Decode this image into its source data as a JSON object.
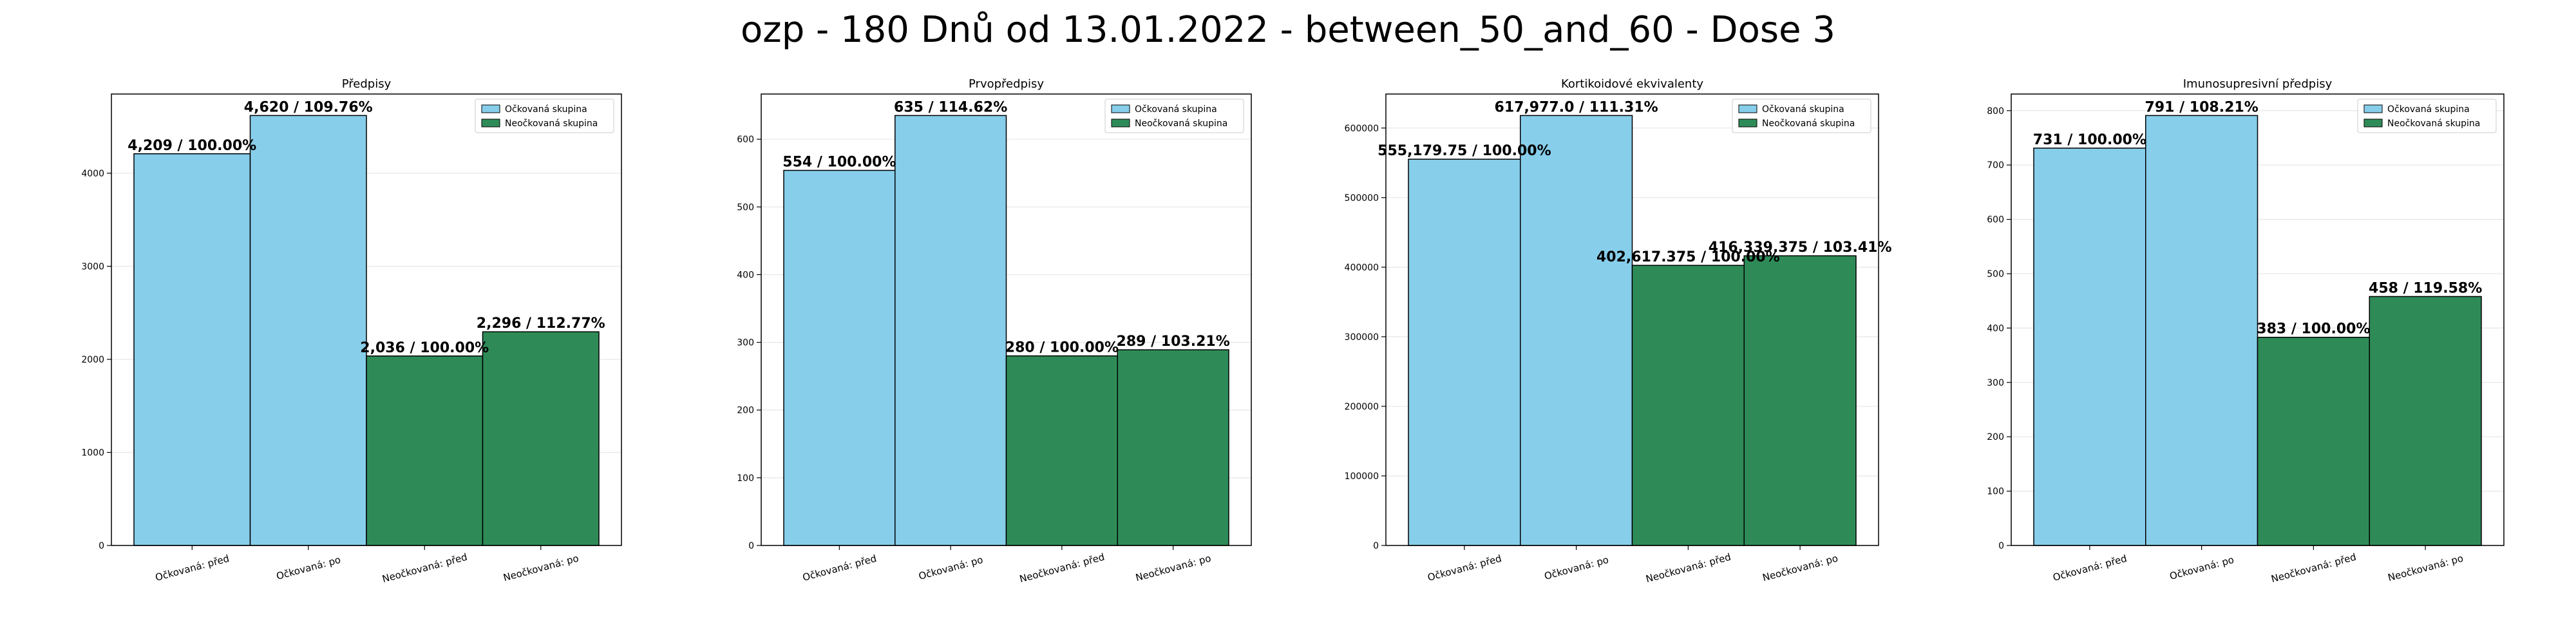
{
  "figure": {
    "title": "ozp - 180 Dnů od 13.01.2022 - between_50_and_60 - Dose 3"
  },
  "colors": {
    "vaccinated": "#87ceeb",
    "unvaccinated": "#2e8b57",
    "edge": "#000000"
  },
  "chart_data": [
    {
      "type": "bar",
      "title": "Předpisy",
      "categories": [
        "Očkovaná: před",
        "Očkovaná: po",
        "Neočkovaná: před",
        "Neočkovaná: po"
      ],
      "values": [
        4209,
        4620,
        2036,
        2296
      ],
      "bar_labels": [
        "4,209 / 100.00%",
        "4,620 / 109.76%",
        "2,036 / 100.00%",
        "2,296 / 112.77%"
      ],
      "groups": [
        "vaccinated",
        "vaccinated",
        "unvaccinated",
        "unvaccinated"
      ],
      "ylim": [
        0,
        4851
      ],
      "yticks": [
        0,
        1000,
        2000,
        3000,
        4000
      ],
      "ytick_labels": [
        "0",
        "1000",
        "2000",
        "3000",
        "4000"
      ],
      "legend": [
        "Očkovaná skupina",
        "Neočkovaná skupina"
      ],
      "legend_position": "top-right",
      "grid": "y"
    },
    {
      "type": "bar",
      "title": "Prvopředpisy",
      "categories": [
        "Očkovaná: před",
        "Očkovaná: po",
        "Neočkovaná: před",
        "Neočkovaná: po"
      ],
      "values": [
        554,
        635,
        280,
        289
      ],
      "bar_labels": [
        "554 / 100.00%",
        "635 / 114.62%",
        "280 / 100.00%",
        "289 / 103.21%"
      ],
      "groups": [
        "vaccinated",
        "vaccinated",
        "unvaccinated",
        "unvaccinated"
      ],
      "ylim": [
        0,
        666.75
      ],
      "yticks": [
        0,
        100,
        200,
        300,
        400,
        500,
        600
      ],
      "ytick_labels": [
        "0",
        "100",
        "200",
        "300",
        "400",
        "500",
        "600"
      ],
      "legend": [
        "Očkovaná skupina",
        "Neočkovaná skupina"
      ],
      "legend_position": "top-right",
      "grid": "y"
    },
    {
      "type": "bar",
      "title": "Kortikoidové ekvivalenty",
      "categories": [
        "Očkovaná: před",
        "Očkovaná: po",
        "Neočkovaná: před",
        "Neočkovaná: po"
      ],
      "values": [
        555179.75,
        617977.0,
        402617.375,
        416339.375
      ],
      "bar_labels": [
        "555,179.75 / 100.00%",
        "617,977.0 / 111.31%",
        "402,617.375 / 100.00%",
        "416,339.375 / 103.41%"
      ],
      "groups": [
        "vaccinated",
        "vaccinated",
        "unvaccinated",
        "unvaccinated"
      ],
      "ylim": [
        0,
        648876
      ],
      "yticks": [
        0,
        100000,
        200000,
        300000,
        400000,
        500000,
        600000
      ],
      "ytick_labels": [
        "0",
        "100000",
        "200000",
        "300000",
        "400000",
        "500000",
        "600000"
      ],
      "legend": [
        "Očkovaná skupina",
        "Neočkovaná skupina"
      ],
      "legend_position": "top-right",
      "grid": "y"
    },
    {
      "type": "bar",
      "title": "Imunosupresivní předpisy",
      "categories": [
        "Očkovaná: před",
        "Očkovaná: po",
        "Neočkovaná: před",
        "Neočkovaná: po"
      ],
      "values": [
        731,
        791,
        383,
        458
      ],
      "bar_labels": [
        "731 / 100.00%",
        "791 / 108.21%",
        "383 / 100.00%",
        "458 / 119.58%"
      ],
      "groups": [
        "vaccinated",
        "vaccinated",
        "unvaccinated",
        "unvaccinated"
      ],
      "ylim": [
        0,
        830.55
      ],
      "yticks": [
        0,
        100,
        200,
        300,
        400,
        500,
        600,
        700,
        800
      ],
      "ytick_labels": [
        "0",
        "100",
        "200",
        "300",
        "400",
        "500",
        "600",
        "700",
        "800"
      ],
      "legend": [
        "Očkovaná skupina",
        "Neočkovaná skupina"
      ],
      "legend_position": "top-right",
      "grid": "y"
    }
  ]
}
